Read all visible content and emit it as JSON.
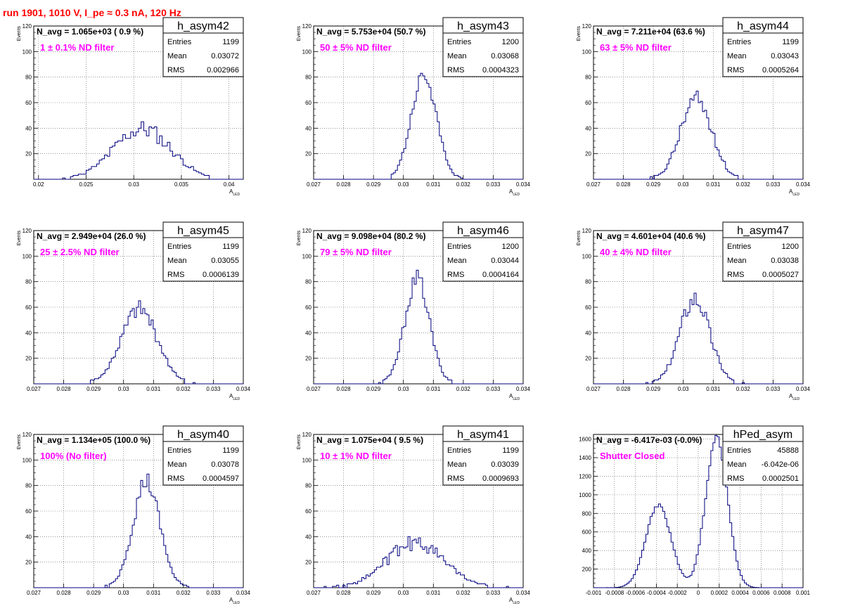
{
  "title": "run 1901,  1010 V, I_pe ≈ 0.3 nA, 120 Hz",
  "colors": {
    "title": "#ff0000",
    "annotation": "#ff00ff",
    "histogram": "#00007f",
    "grid": "#555555"
  },
  "chart_data": [
    {
      "type": "histogram",
      "name": "h_asym42",
      "navg": "N_avg = 1.065e+03 ( 0.9 %)",
      "filter": "1 ± 0.1% ND filter",
      "stats": [
        [
          "Entries",
          "1199"
        ],
        [
          "Mean",
          "0.03072"
        ],
        [
          "RMS",
          "0.002966"
        ]
      ],
      "xlabel": "A_LED",
      "ylabel": "Events",
      "xlim": [
        0.0195,
        0.0415
      ],
      "ylim": [
        0,
        120
      ],
      "xticks": [
        0.02,
        0.025,
        0.03,
        0.035,
        0.04
      ],
      "xticklabels": [
        "0.02",
        "0.025",
        "0.03",
        "0.035",
        "0.04"
      ],
      "yticks": [
        20,
        40,
        60,
        80,
        100,
        120
      ],
      "mu": 0.0309,
      "sigma": 0.00297,
      "peak": 45,
      "bins": 80,
      "seed": 11,
      "noise": 0.18
    },
    {
      "type": "histogram",
      "name": "h_asym43",
      "navg": "N_avg = 5.753e+04 (50.7 %)",
      "filter": "50 ± 5% ND filter",
      "stats": [
        [
          "Entries",
          "1200"
        ],
        [
          "Mean",
          "0.03068"
        ],
        [
          "RMS",
          "0.0004323"
        ]
      ],
      "xlabel": "A_LED",
      "ylabel": "Events",
      "xlim": [
        0.027,
        0.034
      ],
      "ylim": [
        0,
        120
      ],
      "xticks": [
        0.027,
        0.028,
        0.029,
        0.03,
        0.031,
        0.032,
        0.033,
        0.034
      ],
      "xticklabels": [
        "0.027",
        "0.028",
        "0.029",
        "0.03",
        "0.031",
        "0.032",
        "0.033",
        "0.034"
      ],
      "yticks": [
        20,
        40,
        60,
        80,
        100,
        120
      ],
      "mu": 0.03068,
      "sigma": 0.00042,
      "peak": 83,
      "bins": 100,
      "seed": 23,
      "noise": 0.09
    },
    {
      "type": "histogram",
      "name": "h_asym44",
      "navg": "N_avg = 7.211e+04 (63.6 %)",
      "filter": "63 ± 5% ND filter",
      "stats": [
        [
          "Entries",
          "1199"
        ],
        [
          "Mean",
          "0.03043"
        ],
        [
          "RMS",
          "0.0005264"
        ]
      ],
      "xlabel": "A_LED",
      "ylabel": "Events",
      "xlim": [
        0.027,
        0.034
      ],
      "ylim": [
        0,
        120
      ],
      "xticks": [
        0.027,
        0.028,
        0.029,
        0.03,
        0.031,
        0.032,
        0.033,
        0.034
      ],
      "xticklabels": [
        "0.027",
        "0.028",
        "0.029",
        "0.03",
        "0.031",
        "0.032",
        "0.033",
        "0.034"
      ],
      "yticks": [
        20,
        40,
        60,
        80,
        100,
        120
      ],
      "mu": 0.03043,
      "sigma": 0.00052,
      "peak": 69,
      "bins": 100,
      "seed": 37,
      "noise": 0.12
    },
    {
      "type": "histogram",
      "name": "h_asym45",
      "navg": "N_avg = 2.949e+04 (26.0 %)",
      "filter": "25 ± 2.5% ND filter",
      "stats": [
        [
          "Entries",
          "1199"
        ],
        [
          "Mean",
          "0.03055"
        ],
        [
          "RMS",
          "0.0006139"
        ]
      ],
      "xlabel": "A_LED",
      "ylabel": "Events",
      "xlim": [
        0.027,
        0.034
      ],
      "ylim": [
        0,
        120
      ],
      "xticks": [
        0.027,
        0.028,
        0.029,
        0.03,
        0.031,
        0.032,
        0.033,
        0.034
      ],
      "xticklabels": [
        "0.027",
        "0.028",
        "0.029",
        "0.03",
        "0.031",
        "0.032",
        "0.033",
        "0.034"
      ],
      "yticks": [
        20,
        40,
        60,
        80,
        100,
        120
      ],
      "mu": 0.03053,
      "sigma": 0.00061,
      "peak": 65,
      "bins": 100,
      "seed": 41,
      "noise": 0.13
    },
    {
      "type": "histogram",
      "name": "h_asym46",
      "navg": "N_avg = 9.098e+04 (80.2 %)",
      "filter": "79 ± 5% ND filter",
      "stats": [
        [
          "Entries",
          "1200"
        ],
        [
          "Mean",
          "0.03044"
        ],
        [
          "RMS",
          "0.0004164"
        ]
      ],
      "xlabel": "A_LED",
      "ylabel": "Events",
      "xlim": [
        0.027,
        0.034
      ],
      "ylim": [
        0,
        120
      ],
      "xticks": [
        0.027,
        0.028,
        0.029,
        0.03,
        0.031,
        0.032,
        0.033,
        0.034
      ],
      "xticklabels": [
        "0.027",
        "0.028",
        "0.029",
        "0.03",
        "0.031",
        "0.032",
        "0.033",
        "0.034"
      ],
      "yticks": [
        20,
        40,
        60,
        80,
        100,
        120
      ],
      "mu": 0.03046,
      "sigma": 0.00041,
      "peak": 89,
      "bins": 100,
      "seed": 53,
      "noise": 0.09
    },
    {
      "type": "histogram",
      "name": "h_asym47",
      "navg": "N_avg = 4.601e+04 (40.6 %)",
      "filter": "40 ± 4% ND filter",
      "stats": [
        [
          "Entries",
          "1200"
        ],
        [
          "Mean",
          "0.03038"
        ],
        [
          "RMS",
          "0.0005027"
        ]
      ],
      "xlabel": "A_LED",
      "ylabel": "Events",
      "xlim": [
        0.027,
        0.034
      ],
      "ylim": [
        0,
        120
      ],
      "xticks": [
        0.027,
        0.028,
        0.029,
        0.03,
        0.031,
        0.032,
        0.033,
        0.034
      ],
      "xticklabels": [
        "0.027",
        "0.028",
        "0.029",
        "0.03",
        "0.031",
        "0.032",
        "0.033",
        "0.034"
      ],
      "yticks": [
        20,
        40,
        60,
        80,
        100,
        120
      ],
      "mu": 0.03038,
      "sigma": 0.0005,
      "peak": 71,
      "bins": 100,
      "seed": 67,
      "noise": 0.12
    },
    {
      "type": "histogram",
      "name": "h_asym40",
      "navg": "N_avg = 1.134e+05 (100.0 %)",
      "filter": "100% (No filter)",
      "stats": [
        [
          "Entries",
          "1199"
        ],
        [
          "Mean",
          "0.03078"
        ],
        [
          "RMS",
          "0.0004597"
        ]
      ],
      "xlabel": "A_LED",
      "ylabel": "Events",
      "xlim": [
        0.027,
        0.034
      ],
      "ylim": [
        0,
        120
      ],
      "xticks": [
        0.027,
        0.028,
        0.029,
        0.03,
        0.031,
        0.032,
        0.033,
        0.034
      ],
      "xticklabels": [
        "0.027",
        "0.028",
        "0.029",
        "0.03",
        "0.031",
        "0.032",
        "0.033",
        "0.034"
      ],
      "yticks": [
        20,
        40,
        60,
        80,
        100,
        120
      ],
      "mu": 0.03076,
      "sigma": 0.00045,
      "peak": 89,
      "bins": 100,
      "seed": 79,
      "noise": 0.1
    },
    {
      "type": "histogram",
      "name": "h_asym41",
      "navg": "N_avg = 1.075e+04 ( 9.5 %)",
      "filter": "10 ± 1% ND filter",
      "stats": [
        [
          "Entries",
          "1199"
        ],
        [
          "Mean",
          "0.03039"
        ],
        [
          "RMS",
          "0.0009693"
        ]
      ],
      "xlabel": "A_LED",
      "ylabel": "Events",
      "xlim": [
        0.027,
        0.034
      ],
      "ylim": [
        0,
        120
      ],
      "xticks": [
        0.027,
        0.028,
        0.029,
        0.03,
        0.031,
        0.032,
        0.033,
        0.034
      ],
      "xticklabels": [
        "0.027",
        "0.028",
        "0.029",
        "0.03",
        "0.031",
        "0.032",
        "0.033",
        "0.034"
      ],
      "yticks": [
        20,
        40,
        60,
        80,
        100,
        120
      ],
      "mu": 0.0304,
      "sigma": 0.00097,
      "peak": 40,
      "bins": 100,
      "seed": 89,
      "noise": 0.18
    },
    {
      "type": "histogram",
      "name": "hPed_asym",
      "navg": "N_avg = -6.417e-03 (-0.0%)",
      "filter": "Shutter Closed",
      "stats": [
        [
          "Entries",
          "45888"
        ],
        [
          "Mean",
          "-6.042e-06"
        ],
        [
          "RMS",
          "0.0002501"
        ]
      ],
      "xlabel": "",
      "ylabel": "",
      "xlim": [
        -0.001,
        0.001
      ],
      "ylim": [
        0,
        1650
      ],
      "xticks": [
        -0.001,
        -0.0008,
        -0.0006,
        -0.0004,
        -0.0002,
        0,
        0.0002,
        0.0004,
        0.0006,
        0.0008,
        0.001
      ],
      "xticklabels": [
        "-0.001",
        "-0.0008",
        "-0.0006",
        "-0.0004",
        "-0.0002",
        "0",
        "0.0002",
        "0.0004",
        "0.0006",
        "0.0008",
        "0.001"
      ],
      "yticks": [
        200,
        400,
        600,
        800,
        1000,
        1200,
        1400,
        1600
      ],
      "bimodal": [
        {
          "mu": -0.00038,
          "sigma": 0.00012,
          "amp": 840
        },
        {
          "mu": 0.000175,
          "sigma": 0.000105,
          "amp": 1520
        }
      ],
      "peak": 1640,
      "bins": 100,
      "seed": 97,
      "noise": 0.03
    }
  ]
}
